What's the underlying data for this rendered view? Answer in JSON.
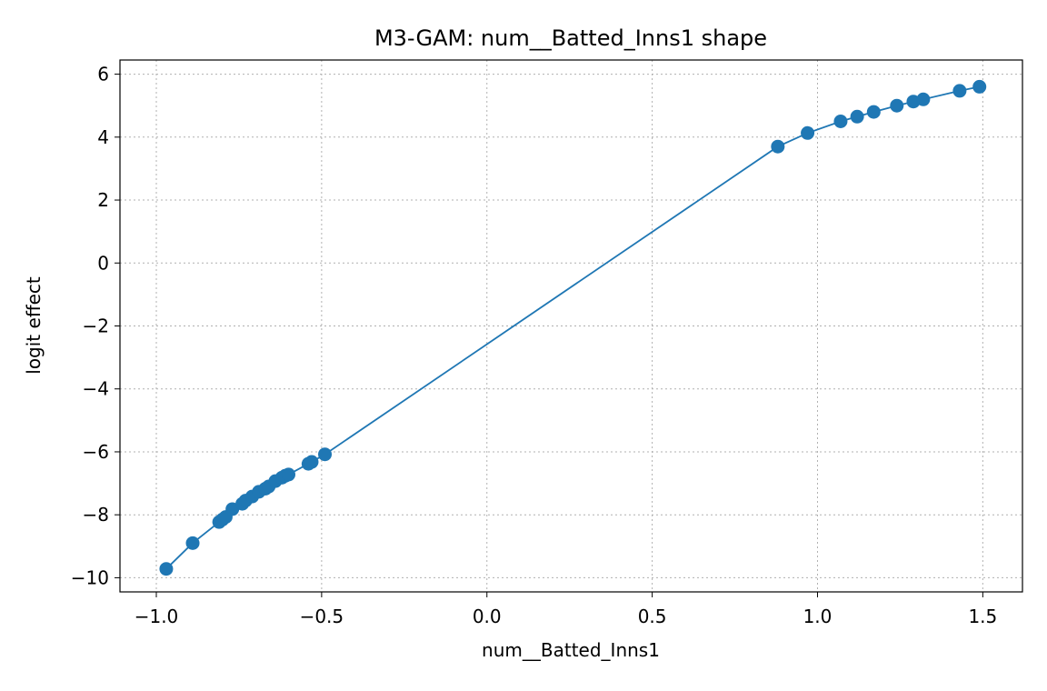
{
  "chart_data": {
    "type": "line",
    "title": "M3-GAM: num__Batted_Inns1 shape",
    "xlabel": "num__Batted_Inns1",
    "ylabel": "logit effect",
    "xlim": [
      -1.11,
      1.62
    ],
    "ylim": [
      -10.45,
      6.45
    ],
    "xticks": [
      -1.0,
      -0.5,
      0.0,
      0.5,
      1.0,
      1.5
    ],
    "xtick_labels": [
      "−1.0",
      "−0.5",
      "0.0",
      "0.5",
      "1.0",
      "1.5"
    ],
    "yticks": [
      -10,
      -8,
      -6,
      -4,
      -2,
      0,
      2,
      4,
      6
    ],
    "ytick_labels": [
      "−10",
      "−8",
      "−6",
      "−4",
      "−2",
      "0",
      "2",
      "4",
      "6"
    ],
    "grid": true,
    "markers": true,
    "color": "#1f77b4",
    "series": [
      {
        "x": [
          -0.97,
          -0.89,
          -0.81,
          -0.8,
          -0.79,
          -0.77,
          -0.74,
          -0.73,
          -0.71,
          -0.69,
          -0.67,
          -0.66,
          -0.64,
          -0.62,
          -0.61,
          -0.6,
          -0.54,
          -0.53,
          -0.49,
          0.88,
          0.97,
          1.07,
          1.12,
          1.17,
          1.24,
          1.29,
          1.32,
          1.43,
          1.49
        ],
        "y": [
          -9.72,
          -8.9,
          -8.23,
          -8.15,
          -8.07,
          -7.82,
          -7.65,
          -7.55,
          -7.42,
          -7.27,
          -7.17,
          -7.1,
          -6.93,
          -6.82,
          -6.76,
          -6.72,
          -6.38,
          -6.32,
          -6.08,
          3.7,
          4.13,
          4.5,
          4.65,
          4.8,
          5.0,
          5.13,
          5.2,
          5.47,
          5.6
        ]
      }
    ]
  }
}
